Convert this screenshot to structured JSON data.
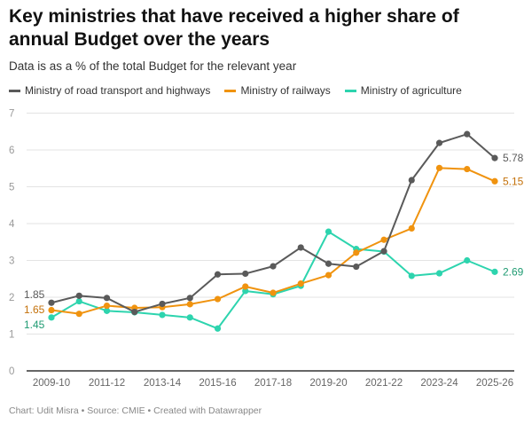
{
  "title": "Key ministries that have received a higher share of annual Budget over the years",
  "subtitle": "Data is as a % of the total Budget for the relevant year",
  "footer": "Chart: Udit Misra • Source: CMIE • Created with Datawrapper",
  "chart_data": {
    "type": "line",
    "x": [
      "2009-10",
      "2010-11",
      "2011-12",
      "2012-13",
      "2013-14",
      "2014-15",
      "2015-16",
      "2016-17",
      "2017-18",
      "2018-19",
      "2019-20",
      "2020-21",
      "2021-22",
      "2022-23",
      "2023-24",
      "2024-25",
      "2025-26"
    ],
    "x_tick_labels": [
      "2009-10",
      "2011-12",
      "2013-14",
      "2015-16",
      "2017-18",
      "2019-20",
      "2021-22",
      "2023-24",
      "2025-26"
    ],
    "ylim": [
      0,
      7
    ],
    "y_ticks": [
      "0",
      "1",
      "2",
      "3",
      "4",
      "5",
      "6",
      "7"
    ],
    "grid": true,
    "legend": "top",
    "series": [
      {
        "name": "Ministry of road transport and highways",
        "color": "#5a5a5a",
        "label_color": "#5a5a5a",
        "start_label": "1.85",
        "end_label": "5.78",
        "values": [
          1.85,
          2.04,
          1.98,
          1.6,
          1.82,
          1.98,
          2.62,
          2.64,
          2.84,
          3.35,
          2.91,
          2.83,
          3.25,
          5.18,
          6.19,
          6.43,
          5.78
        ]
      },
      {
        "name": "Ministry of railways",
        "color": "#f0930f",
        "label_color": "#c4710a",
        "start_label": "1.65",
        "end_label": "5.15",
        "values": [
          1.65,
          1.55,
          1.77,
          1.71,
          1.73,
          1.81,
          1.95,
          2.29,
          2.12,
          2.37,
          2.6,
          3.21,
          3.56,
          3.87,
          5.51,
          5.48,
          5.15
        ]
      },
      {
        "name": "Ministry of agriculture",
        "color": "#2dd4ae",
        "label_color": "#1f9b72",
        "start_label": "1.45",
        "end_label": "2.69",
        "values": [
          1.45,
          1.89,
          1.63,
          1.59,
          1.52,
          1.45,
          1.15,
          2.17,
          2.08,
          2.31,
          3.78,
          3.31,
          3.24,
          2.58,
          2.65,
          3.0,
          2.69
        ]
      }
    ]
  }
}
